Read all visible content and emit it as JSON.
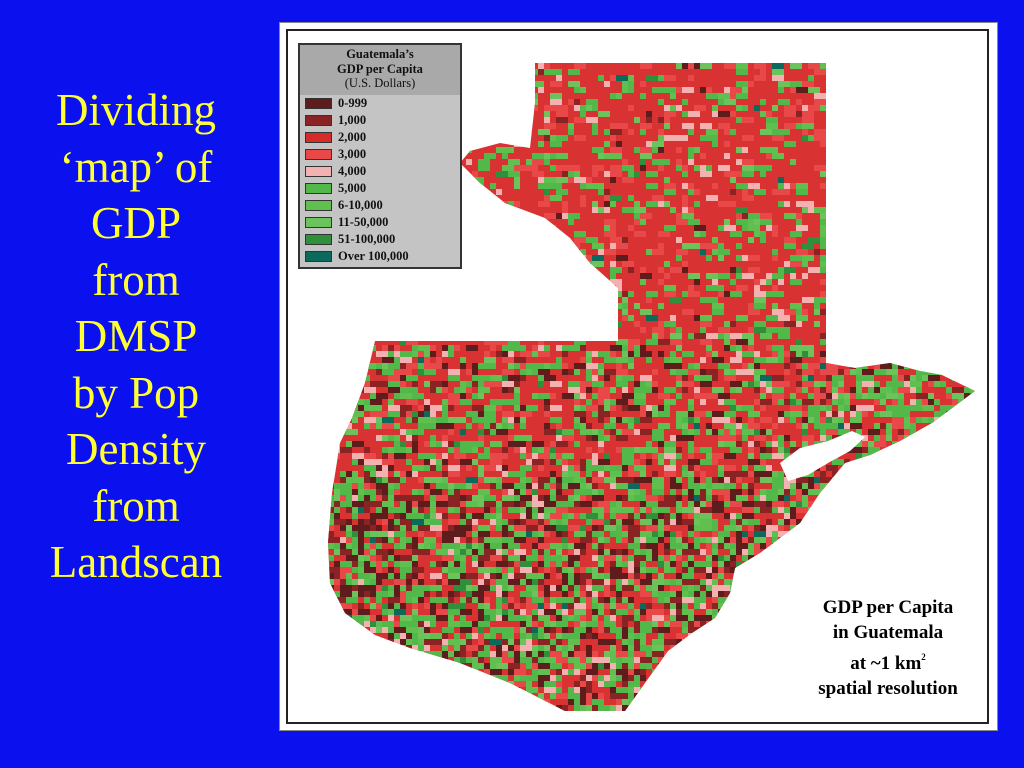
{
  "slide": {
    "title_lines": [
      "Dividing",
      "‘map’ of",
      "GDP",
      "from",
      "DMSP",
      "by Pop",
      "Density",
      "from",
      "Landscan"
    ]
  },
  "map": {
    "legend": {
      "title_line1": "Guatemala’s",
      "title_line2": "GDP per Capita",
      "title_line3": "(U.S. Dollars)",
      "items": [
        {
          "label": "0-999",
          "color": "#5e1c1c"
        },
        {
          "label": "1,000",
          "color": "#8a2424"
        },
        {
          "label": "2,000",
          "color": "#d62b2b"
        },
        {
          "label": "3,000",
          "color": "#e84848"
        },
        {
          "label": "4,000",
          "color": "#f4b1b1"
        },
        {
          "label": "5,000",
          "color": "#52b84a"
        },
        {
          "label": "6-10,000",
          "color": "#5fbf4f"
        },
        {
          "label": "11-50,000",
          "color": "#6cc35c"
        },
        {
          "label": "51-100,000",
          "color": "#2f8f3a"
        },
        {
          "label": "Over 100,000",
          "color": "#0b6a5c"
        }
      ]
    },
    "caption": {
      "line1": "GDP  per Capita",
      "line2": "in Guatemala",
      "line3_text": "at ~1 km",
      "line3_sup": "2",
      "line4": "spatial resolution"
    },
    "colors": {
      "land_base": "#d83232",
      "lake": "#ffffff"
    }
  }
}
